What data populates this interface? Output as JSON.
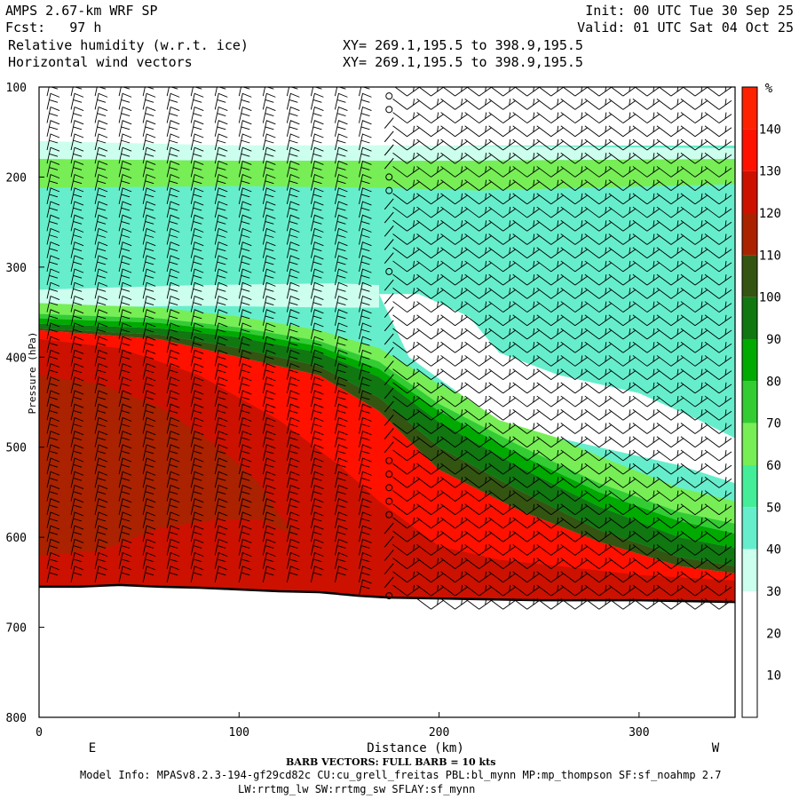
{
  "header": {
    "model_title": "AMPS 2.67-km WRF SP",
    "forecast": "Fcst:   97 h",
    "field_1": "Relative humidity (w.r.t. ice)",
    "field_2": "Horizontal wind vectors",
    "init_time": "Init: 00 UTC Tue 30 Sep 25",
    "valid_time": "Valid: 01 UTC Sat 04 Oct 25",
    "xy_1": "XY= 269.1,195.5 to 398.9,195.5",
    "xy_2": "XY= 269.1,195.5 to 398.9,195.5"
  },
  "footer": {
    "barb_note": "BARB VECTORS:  FULL BARB = 10 kts",
    "model_info": "Model Info: MPASv8.2.3-194-gf29cd82c CU:cu_grell_freitas PBL:bl_mynn MP:mp_thompson SF:sf_noahmp 2.7",
    "model_info_2": "LW:rrtmg_lw SW:rrtmg_sw SFLAY:sf_mynn"
  },
  "chart_data": {
    "type": "heatmap",
    "title": "Relative humidity (w.r.t. ice)",
    "overlay": "Horizontal wind vectors",
    "xlabel": "Distance (km)",
    "x_left_label": "E",
    "x_right_label": "W",
    "ylabel": "Pressure (hPa)",
    "xlim": [
      0,
      348
    ],
    "ylim": [
      800,
      100
    ],
    "x_ticks": [
      0,
      100,
      200,
      300
    ],
    "y_ticks": [
      100,
      200,
      300,
      400,
      500,
      600,
      700,
      800
    ],
    "colorbar": {
      "unit": "%",
      "levels": [
        0,
        10,
        20,
        30,
        40,
        50,
        60,
        70,
        80,
        90,
        100,
        110,
        120,
        130,
        140,
        150
      ],
      "tick_labels": [
        "10",
        "20",
        "30",
        "40",
        "50",
        "60",
        "70",
        "80",
        "90",
        "100",
        "110",
        "120",
        "130",
        "140"
      ],
      "colors": [
        "#ffffff",
        "#ffffff",
        "#ffffff",
        "#ccffee",
        "#66eecc",
        "#44ee99",
        "#77ee55",
        "#33cc33",
        "#00aa00",
        "#117711",
        "#335511",
        "#aa2200",
        "#cc1100",
        "#ff1100",
        "#ff2200"
      ]
    },
    "terrain_surface": [
      {
        "x": 0,
        "p": 655
      },
      {
        "x": 20,
        "p": 655
      },
      {
        "x": 40,
        "p": 653
      },
      {
        "x": 60,
        "p": 655
      },
      {
        "x": 80,
        "p": 656
      },
      {
        "x": 100,
        "p": 658
      },
      {
        "x": 120,
        "p": 660
      },
      {
        "x": 140,
        "p": 661
      },
      {
        "x": 160,
        "p": 665
      },
      {
        "x": 175,
        "p": 667
      },
      {
        "x": 200,
        "p": 668
      },
      {
        "x": 250,
        "p": 670
      },
      {
        "x": 300,
        "p": 670
      },
      {
        "x": 348,
        "p": 672
      }
    ],
    "regions": [
      {
        "name": "upper-light-band",
        "level": 30,
        "top": [
          [
            0,
            160
          ],
          [
            100,
            165
          ],
          [
            200,
            165
          ],
          [
            348,
            168
          ]
        ],
        "bottom": [
          [
            0,
            180
          ],
          [
            100,
            182
          ],
          [
            200,
            182
          ],
          [
            348,
            180
          ]
        ]
      },
      {
        "name": "upper-green-band",
        "level": 60,
        "top": [
          [
            0,
            180
          ],
          [
            100,
            182
          ],
          [
            200,
            182
          ],
          [
            348,
            180
          ]
        ],
        "bottom": [
          [
            0,
            212
          ],
          [
            100,
            210
          ],
          [
            170,
            212
          ],
          [
            220,
            215
          ],
          [
            348,
            208
          ]
        ]
      },
      {
        "name": "upper-cyan-band",
        "level": 40,
        "top": [
          [
            0,
            212
          ],
          [
            100,
            210
          ],
          [
            170,
            212
          ],
          [
            220,
            215
          ],
          [
            348,
            208
          ]
        ],
        "bottom": [
          [
            0,
            290
          ],
          [
            60,
            282
          ],
          [
            120,
            265
          ],
          [
            170,
            250
          ],
          [
            220,
            243
          ],
          [
            280,
            240
          ],
          [
            348,
            235
          ]
        ]
      },
      {
        "name": "mid-cyan-west",
        "level": 40,
        "top": [
          [
            170,
            250
          ],
          [
            220,
            243
          ],
          [
            280,
            240
          ],
          [
            348,
            235
          ]
        ],
        "bottom": [
          [
            170,
            345
          ],
          [
            200,
            370
          ],
          [
            240,
            370
          ],
          [
            300,
            390
          ],
          [
            348,
            380
          ]
        ]
      },
      {
        "name": "light-lens",
        "level": 30,
        "top": [
          [
            0,
            325
          ],
          [
            80,
            320
          ],
          [
            150,
            318
          ],
          [
            170,
            320
          ]
        ],
        "bottom": [
          [
            0,
            345
          ],
          [
            80,
            343
          ],
          [
            150,
            345
          ],
          [
            170,
            345
          ]
        ]
      },
      {
        "name": "moist-60",
        "level": 60,
        "top": [
          [
            0,
            340
          ],
          [
            60,
            345
          ],
          [
            100,
            355
          ],
          [
            140,
            370
          ],
          [
            170,
            390
          ],
          [
            200,
            430
          ],
          [
            240,
            470
          ],
          [
            280,
            510
          ],
          [
            320,
            545
          ],
          [
            348,
            560
          ]
        ],
        "bottom": [
          [
            0,
            352
          ],
          [
            60,
            357
          ],
          [
            100,
            367
          ],
          [
            140,
            382
          ],
          [
            170,
            405
          ],
          [
            200,
            452
          ],
          [
            240,
            498
          ],
          [
            280,
            540
          ],
          [
            320,
            572
          ],
          [
            348,
            585
          ]
        ]
      },
      {
        "name": "moist-70",
        "level": 70,
        "top": [
          [
            0,
            352
          ],
          [
            60,
            357
          ],
          [
            100,
            367
          ],
          [
            140,
            382
          ],
          [
            170,
            405
          ],
          [
            200,
            452
          ],
          [
            240,
            498
          ],
          [
            280,
            540
          ],
          [
            320,
            572
          ],
          [
            348,
            585
          ]
        ],
        "bottom": [
          [
            0,
            357
          ],
          [
            60,
            362
          ],
          [
            100,
            372
          ],
          [
            140,
            388
          ],
          [
            170,
            413
          ],
          [
            200,
            460
          ],
          [
            240,
            508
          ],
          [
            280,
            550
          ],
          [
            320,
            582
          ],
          [
            348,
            596
          ]
        ]
      },
      {
        "name": "moist-80",
        "level": 80,
        "top": [
          [
            0,
            357
          ],
          [
            60,
            362
          ],
          [
            100,
            372
          ],
          [
            140,
            388
          ],
          [
            170,
            413
          ],
          [
            200,
            460
          ],
          [
            240,
            508
          ],
          [
            280,
            550
          ],
          [
            320,
            582
          ],
          [
            348,
            596
          ]
        ],
        "bottom": [
          [
            0,
            363
          ],
          [
            60,
            368
          ],
          [
            100,
            378
          ],
          [
            140,
            395
          ],
          [
            170,
            422
          ],
          [
            200,
            472
          ],
          [
            240,
            522
          ],
          [
            280,
            566
          ],
          [
            320,
            600
          ],
          [
            348,
            612
          ]
        ]
      },
      {
        "name": "moist-90",
        "level": 90,
        "top": [
          [
            0,
            363
          ],
          [
            60,
            368
          ],
          [
            100,
            378
          ],
          [
            140,
            395
          ],
          [
            170,
            422
          ],
          [
            200,
            472
          ],
          [
            240,
            522
          ],
          [
            280,
            566
          ],
          [
            320,
            600
          ],
          [
            348,
            612
          ]
        ],
        "bottom": [
          [
            0,
            368
          ],
          [
            60,
            375
          ],
          [
            100,
            390
          ],
          [
            140,
            410
          ],
          [
            170,
            445
          ],
          [
            200,
            500
          ],
          [
            240,
            548
          ],
          [
            280,
            592
          ],
          [
            320,
            622
          ],
          [
            348,
            632
          ]
        ]
      },
      {
        "name": "moist-100",
        "level": 100,
        "top": [
          [
            0,
            368
          ],
          [
            60,
            375
          ],
          [
            100,
            390
          ],
          [
            140,
            410
          ],
          [
            170,
            445
          ],
          [
            200,
            500
          ],
          [
            240,
            548
          ],
          [
            280,
            592
          ],
          [
            320,
            622
          ],
          [
            348,
            632
          ]
        ],
        "bottom": [
          [
            0,
            370
          ],
          [
            60,
            380
          ],
          [
            100,
            400
          ],
          [
            140,
            420
          ],
          [
            170,
            460
          ],
          [
            200,
            525
          ],
          [
            240,
            570
          ],
          [
            280,
            605
          ],
          [
            320,
            632
          ],
          [
            348,
            640
          ]
        ]
      },
      {
        "name": "near-surface-red",
        "level": 130,
        "top": [
          [
            0,
            370
          ],
          [
            60,
            380
          ],
          [
            100,
            400
          ],
          [
            140,
            420
          ],
          [
            170,
            460
          ],
          [
            200,
            525
          ],
          [
            240,
            570
          ],
          [
            280,
            605
          ],
          [
            320,
            632
          ],
          [
            348,
            640
          ]
        ],
        "bottom": [
          [
            0,
            655
          ],
          [
            40,
            653
          ],
          [
            80,
            656
          ],
          [
            120,
            660
          ],
          [
            160,
            665
          ],
          [
            175,
            667
          ],
          [
            200,
            668
          ],
          [
            250,
            670
          ],
          [
            300,
            670
          ],
          [
            348,
            672
          ]
        ]
      },
      {
        "name": "dark-red-lower",
        "level": 120,
        "top": [
          [
            0,
            380
          ],
          [
            40,
            390
          ],
          [
            80,
            420
          ],
          [
            120,
            470
          ],
          [
            150,
            520
          ],
          [
            170,
            560
          ],
          [
            200,
            610
          ],
          [
            230,
            625
          ],
          [
            260,
            632
          ],
          [
            300,
            642
          ],
          [
            348,
            648
          ]
        ],
        "bottom": [
          [
            0,
            655
          ],
          [
            40,
            653
          ],
          [
            80,
            656
          ],
          [
            120,
            660
          ],
          [
            160,
            665
          ],
          [
            175,
            667
          ],
          [
            200,
            668
          ],
          [
            250,
            670
          ],
          [
            300,
            670
          ],
          [
            348,
            672
          ]
        ]
      },
      {
        "name": "olive-west-core",
        "level": 110,
        "top": [
          [
            0,
            420
          ],
          [
            30,
            430
          ],
          [
            60,
            455
          ],
          [
            90,
            500
          ],
          [
            110,
            540
          ],
          [
            120,
            575
          ],
          [
            130,
            600
          ]
        ],
        "bottom": [
          [
            0,
            620
          ],
          [
            30,
            615
          ],
          [
            60,
            590
          ],
          [
            90,
            580
          ],
          [
            110,
            580
          ],
          [
            120,
            590
          ],
          [
            130,
            600
          ]
        ]
      }
    ],
    "dry_region": {
      "name": "dry-core",
      "level": 20,
      "poly": [
        [
          170,
          330
        ],
        [
          190,
          330
        ],
        [
          215,
          355
        ],
        [
          230,
          395
        ],
        [
          260,
          420
        ],
        [
          300,
          440
        ],
        [
          330,
          470
        ],
        [
          348,
          490
        ],
        [
          348,
          540
        ],
        [
          320,
          520
        ],
        [
          290,
          505
        ],
        [
          260,
          490
        ],
        [
          230,
          470
        ],
        [
          210,
          440
        ],
        [
          185,
          400
        ]
      ]
    },
    "barbs": {
      "spacing_km": 12,
      "pressure_levels": [
        110,
        125,
        140,
        155,
        170,
        185,
        200,
        215,
        230,
        245,
        260,
        275,
        290,
        305,
        320,
        335,
        350,
        365,
        380,
        395,
        410,
        425,
        440,
        455,
        470,
        485,
        500,
        515,
        530,
        545,
        560,
        575,
        590,
        605,
        620,
        635,
        650,
        665,
        680
      ],
      "calm_column_km": 175,
      "calm_levels": [
        110,
        125,
        200,
        210,
        305,
        520,
        535,
        550,
        565,
        580,
        670
      ]
    }
  }
}
